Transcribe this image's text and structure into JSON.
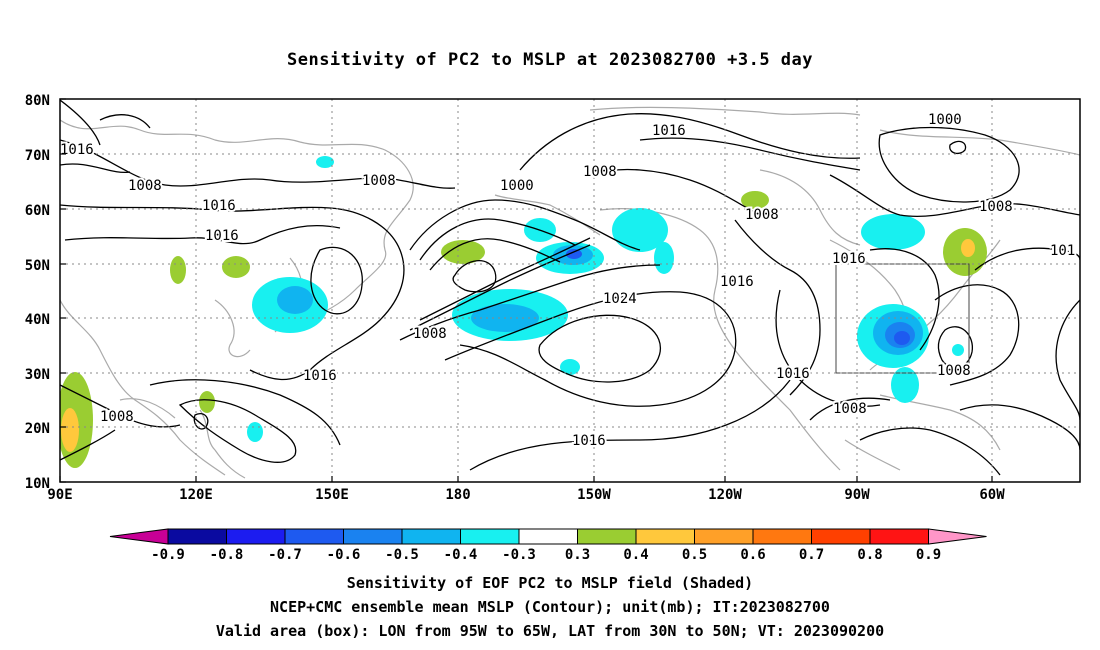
{
  "title": "Sensitivity of PC2 to MSLP at 2023082700 +3.5 day",
  "axes": {
    "lat_labels": [
      "80N",
      "70N",
      "60N",
      "50N",
      "40N",
      "30N",
      "20N",
      "10N"
    ],
    "lon_labels": [
      "90E",
      "120E",
      "150E",
      "180",
      "150W",
      "120W",
      "90W",
      "60W"
    ]
  },
  "contour_labels": [
    "1016",
    "1008",
    "1016",
    "1016",
    "1000",
    "1008",
    "1016",
    "1000",
    "1008",
    "1008",
    "1016",
    "1024",
    "1016",
    "101",
    "1008",
    "1016",
    "1008",
    "1016",
    "1016",
    "1008",
    "1008"
  ],
  "colorbar": {
    "labels": [
      "-0.9",
      "-0.8",
      "-0.7",
      "-0.6",
      "-0.5",
      "-0.4",
      "-0.3",
      "0.3",
      "0.4",
      "0.5",
      "0.6",
      "0.7",
      "0.8",
      "0.9"
    ],
    "colors": [
      "#0a0aa0",
      "#1c1cf0",
      "#1e5af0",
      "#1a82f0",
      "#10b4f0",
      "#18f0f0",
      "#ffffff",
      "#9acd32",
      "#ffc83c",
      "#ffa028",
      "#ff7810",
      "#ff4000",
      "#ff1414"
    ],
    "end_low_color": "#c80096",
    "end_high_color": "#ff96c8"
  },
  "captions": {
    "line1": "Sensitivity of EOF PC2 to MSLP field (Shaded)",
    "line2": "NCEP+CMC ensemble mean MSLP (Contour); unit(mb); IT:2023082700",
    "line3": "Valid area (box): LON from 95W to 65W, LAT from 30N to 50N; VT: 2023090200"
  }
}
